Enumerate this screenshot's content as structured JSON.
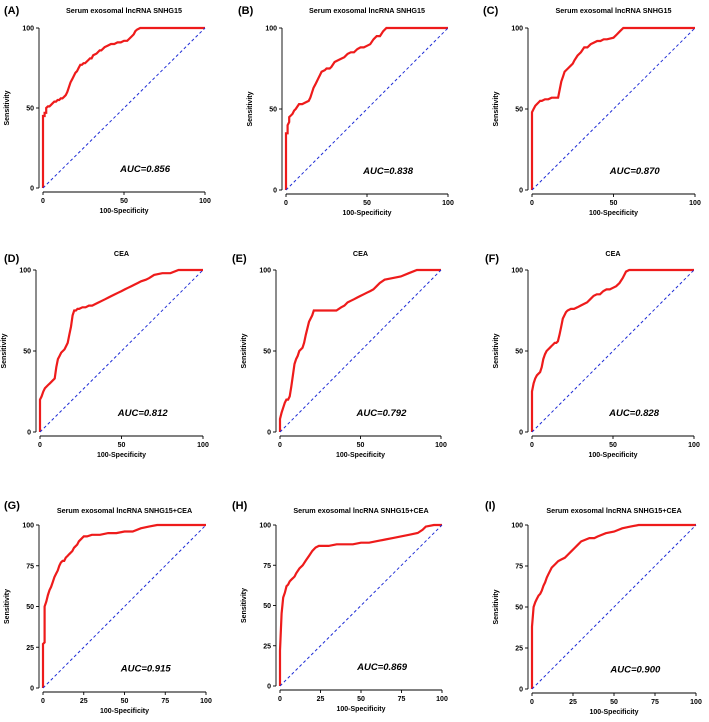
{
  "figure": {
    "style": {
      "roc_color": "#ee1b1b",
      "reference_color": "#1f2dd6",
      "axis_color": "#000000"
    }
  },
  "chart_data": [
    {
      "panel": "(A)",
      "title": "Serum exosomal lncRNA SNHG15",
      "type": "line",
      "xlabel": "100-Specificity",
      "ylabel": "Sensitivity",
      "xlim": [
        0,
        100
      ],
      "ylim": [
        0,
        100
      ],
      "xticks": [
        "0",
        "50",
        "100"
      ],
      "yticks": [
        "0",
        "50",
        "100"
      ],
      "auc_text": "AUC=0.856",
      "series": [
        {
          "name": "ROC",
          "x": [
            0,
            0,
            1,
            1,
            2,
            2,
            3,
            4,
            5,
            6,
            7,
            8,
            9,
            10,
            11,
            12,
            13,
            14,
            15,
            16,
            17,
            18,
            19,
            20,
            21,
            22,
            23,
            24,
            25,
            26,
            28,
            29,
            30,
            31,
            33,
            35,
            36,
            38,
            40,
            42,
            44,
            46,
            48,
            50,
            52,
            55,
            56,
            57,
            58,
            60,
            100
          ],
          "y": [
            0,
            45,
            45,
            47,
            47,
            50,
            51,
            51,
            52,
            53,
            54,
            54,
            55,
            55,
            56,
            56,
            57,
            58,
            60,
            63,
            66,
            68,
            70,
            72,
            73,
            75,
            77,
            77,
            78,
            78,
            80,
            81,
            81,
            83,
            84,
            86,
            86,
            88,
            89,
            90,
            90,
            91,
            91,
            92,
            92,
            95,
            96,
            98,
            99,
            100,
            100
          ]
        },
        {
          "name": "Reference",
          "x": [
            0,
            100
          ],
          "y": [
            0,
            100
          ]
        }
      ]
    },
    {
      "panel": "(B)",
      "title": "Serum exosomal lncRNA SNHG15",
      "type": "line",
      "xlabel": "100-Specificity",
      "ylabel": "Sensitivity",
      "xlim": [
        0,
        100
      ],
      "ylim": [
        0,
        100
      ],
      "xticks": [
        "0",
        "50",
        "100"
      ],
      "yticks": [
        "0",
        "50",
        "100"
      ],
      "auc_text": "AUC=0.838",
      "series": [
        {
          "name": "ROC",
          "x": [
            0,
            0,
            1,
            1,
            2,
            2,
            3,
            4,
            5,
            6,
            8,
            10,
            12,
            14,
            15,
            16,
            17,
            18,
            19,
            20,
            21,
            22,
            24,
            25,
            27,
            28,
            30,
            32,
            34,
            36,
            38,
            40,
            42,
            44,
            46,
            48,
            50,
            52,
            54,
            56,
            58,
            60,
            62,
            100
          ],
          "y": [
            0,
            35,
            35,
            40,
            42,
            45,
            46,
            47,
            49,
            50,
            53,
            53,
            54,
            55,
            57,
            60,
            63,
            65,
            67,
            69,
            71,
            73,
            74,
            75,
            75,
            76,
            79,
            80,
            81,
            82,
            84,
            85,
            85,
            87,
            88,
            88,
            89,
            90,
            93,
            95,
            95,
            98,
            100,
            100
          ]
        },
        {
          "name": "Reference",
          "x": [
            0,
            100
          ],
          "y": [
            0,
            100
          ]
        }
      ]
    },
    {
      "panel": "(C)",
      "title": "Serum exosomal lncRNA SNHG15",
      "type": "line",
      "xlabel": "100-Specificity",
      "ylabel": "Sensitivity",
      "xlim": [
        0,
        100
      ],
      "ylim": [
        0,
        100
      ],
      "xticks": [
        "0",
        "50",
        "100"
      ],
      "yticks": [
        "0",
        "50",
        "100"
      ],
      "auc_text": "AUC=0.870",
      "series": [
        {
          "name": "ROC",
          "x": [
            0,
            0,
            1,
            2,
            3,
            4,
            5,
            6,
            8,
            10,
            12,
            14,
            16,
            17,
            18,
            19,
            20,
            22,
            24,
            25,
            26,
            28,
            30,
            32,
            34,
            36,
            38,
            40,
            42,
            44,
            46,
            50,
            52,
            54,
            56,
            58,
            60,
            100
          ],
          "y": [
            0,
            48,
            50,
            52,
            53,
            54,
            55,
            55,
            56,
            56,
            57,
            57,
            57,
            62,
            67,
            70,
            73,
            75,
            77,
            78,
            80,
            83,
            85,
            88,
            88,
            90,
            91,
            92,
            92,
            93,
            93,
            94,
            96,
            98,
            100,
            100,
            100,
            100
          ]
        },
        {
          "name": "Reference",
          "x": [
            0,
            100
          ],
          "y": [
            0,
            100
          ]
        }
      ]
    },
    {
      "panel": "(D)",
      "title": "CEA",
      "type": "line",
      "xlabel": "100-Specificity",
      "ylabel": "Sensitivity",
      "xlim": [
        0,
        100
      ],
      "ylim": [
        0,
        100
      ],
      "xticks": [
        "0",
        "50",
        "100"
      ],
      "yticks": [
        "0",
        "50",
        "100"
      ],
      "auc_text": "AUC=0.812",
      "series": [
        {
          "name": "ROC",
          "x": [
            0,
            0,
            1,
            2,
            3,
            4,
            5,
            6,
            7,
            8,
            9,
            10,
            11,
            12,
            13,
            15,
            16,
            17,
            18,
            19,
            20,
            21,
            22,
            23,
            24,
            26,
            28,
            30,
            32,
            34,
            36,
            38,
            40,
            42,
            44,
            46,
            48,
            50,
            52,
            54,
            56,
            58,
            60,
            62,
            65,
            67,
            70,
            75,
            80,
            85,
            90,
            100
          ],
          "y": [
            0,
            20,
            22,
            25,
            27,
            28,
            29,
            30,
            31,
            32,
            33,
            40,
            45,
            47,
            49,
            51,
            53,
            55,
            60,
            65,
            72,
            75,
            75,
            76,
            76,
            77,
            77,
            78,
            78,
            79,
            80,
            81,
            82,
            83,
            84,
            85,
            86,
            87,
            88,
            89,
            90,
            91,
            92,
            93,
            94,
            95,
            97,
            98,
            98,
            100,
            100,
            100
          ]
        },
        {
          "name": "Reference",
          "x": [
            0,
            100
          ],
          "y": [
            0,
            100
          ]
        }
      ]
    },
    {
      "panel": "(E)",
      "title": "CEA",
      "type": "line",
      "xlabel": "100-Specificity",
      "ylabel": "Sensitivity",
      "xlim": [
        0,
        100
      ],
      "ylim": [
        0,
        100
      ],
      "xticks": [
        "0",
        "50",
        "100"
      ],
      "yticks": [
        "0",
        "50",
        "100"
      ],
      "auc_text": "AUC=0.792",
      "series": [
        {
          "name": "ROC",
          "x": [
            0,
            0,
            1,
            2,
            3,
            4,
            5,
            6,
            7,
            8,
            9,
            10,
            11,
            12,
            14,
            15,
            16,
            18,
            20,
            21,
            25,
            30,
            35,
            38,
            40,
            42,
            44,
            46,
            48,
            50,
            52,
            54,
            56,
            58,
            60,
            62,
            65,
            70,
            75,
            80,
            85,
            90,
            100
          ],
          "y": [
            0,
            8,
            12,
            15,
            18,
            20,
            20,
            22,
            28,
            35,
            42,
            45,
            47,
            50,
            52,
            55,
            60,
            68,
            72,
            75,
            75,
            75,
            75,
            77,
            78,
            80,
            81,
            82,
            83,
            84,
            85,
            86,
            87,
            88,
            90,
            92,
            94,
            95,
            96,
            98,
            100,
            100,
            100
          ]
        },
        {
          "name": "Reference",
          "x": [
            0,
            100
          ],
          "y": [
            0,
            100
          ]
        }
      ]
    },
    {
      "panel": "(F)",
      "title": "CEA",
      "type": "line",
      "xlabel": "100-Specificity",
      "ylabel": "Sensitivity",
      "xlim": [
        0,
        100
      ],
      "ylim": [
        0,
        100
      ],
      "xticks": [
        "0",
        "50",
        "100"
      ],
      "yticks": [
        "0",
        "50",
        "100"
      ],
      "auc_text": "AUC=0.828",
      "series": [
        {
          "name": "ROC",
          "x": [
            0,
            0,
            1,
            2,
            3,
            4,
            5,
            6,
            7,
            8,
            9,
            10,
            11,
            12,
            13,
            14,
            15,
            16,
            17,
            18,
            19,
            20,
            21,
            22,
            24,
            26,
            28,
            30,
            32,
            34,
            36,
            38,
            40,
            42,
            44,
            46,
            48,
            50,
            52,
            54,
            56,
            58,
            60,
            100
          ],
          "y": [
            0,
            25,
            30,
            33,
            35,
            36,
            37,
            40,
            45,
            48,
            50,
            51,
            52,
            53,
            54,
            55,
            55,
            56,
            60,
            65,
            70,
            72,
            74,
            75,
            76,
            76,
            77,
            78,
            79,
            80,
            82,
            84,
            85,
            85,
            87,
            88,
            88,
            89,
            90,
            92,
            95,
            99,
            100,
            100
          ]
        },
        {
          "name": "Reference",
          "x": [
            0,
            100
          ],
          "y": [
            0,
            100
          ]
        }
      ]
    },
    {
      "panel": "(G)",
      "title": "Serum exosomal lncRNA SNHG15+CEA",
      "type": "line",
      "xlabel": "100-Specificity",
      "ylabel": "Sensitivity",
      "xlim": [
        0,
        100
      ],
      "ylim": [
        0,
        100
      ],
      "xticks": [
        "0",
        "25",
        "50",
        "75",
        "100"
      ],
      "yticks": [
        "0",
        "25",
        "50",
        "75",
        "100"
      ],
      "auc_text": "AUC=0.915",
      "series": [
        {
          "name": "ROC",
          "x": [
            0,
            0,
            1,
            1,
            2,
            3,
            4,
            5,
            6,
            7,
            8,
            9,
            10,
            11,
            12,
            13,
            14,
            15,
            16,
            17,
            18,
            19,
            20,
            21,
            22,
            23,
            25,
            27,
            30,
            35,
            40,
            45,
            50,
            55,
            60,
            65,
            70,
            75,
            80,
            100
          ],
          "y": [
            0,
            27,
            28,
            50,
            53,
            57,
            60,
            62,
            65,
            68,
            70,
            72,
            75,
            77,
            78,
            78,
            80,
            81,
            82,
            83,
            84,
            86,
            87,
            88,
            90,
            91,
            93,
            93,
            94,
            94,
            95,
            95,
            96,
            96,
            98,
            99,
            100,
            100,
            100,
            100
          ]
        },
        {
          "name": "Reference",
          "x": [
            0,
            100
          ],
          "y": [
            0,
            100
          ]
        }
      ]
    },
    {
      "panel": "(H)",
      "title": "Serum exosomal lncRNA SNHG15+CEA",
      "type": "line",
      "xlabel": "100-Specificity",
      "ylabel": "Sensitivity",
      "xlim": [
        0,
        100
      ],
      "ylim": [
        0,
        100
      ],
      "xticks": [
        "0",
        "25",
        "50",
        "75",
        "100"
      ],
      "yticks": [
        "0",
        "25",
        "50",
        "75",
        "100"
      ],
      "auc_text": "AUC=0.869",
      "series": [
        {
          "name": "ROC",
          "x": [
            0,
            0,
            1,
            2,
            3,
            4,
            5,
            6,
            7,
            8,
            9,
            10,
            12,
            14,
            16,
            18,
            20,
            22,
            24,
            26,
            30,
            35,
            40,
            45,
            50,
            55,
            60,
            65,
            70,
            75,
            80,
            85,
            88,
            90,
            95,
            100
          ],
          "y": [
            0,
            22,
            45,
            55,
            58,
            62,
            63,
            65,
            66,
            67,
            68,
            70,
            73,
            75,
            78,
            81,
            84,
            86,
            87,
            87,
            87,
            88,
            88,
            88,
            89,
            89,
            90,
            91,
            92,
            93,
            94,
            95,
            97,
            99,
            100,
            100
          ]
        },
        {
          "name": "Reference",
          "x": [
            0,
            100
          ],
          "y": [
            0,
            100
          ]
        }
      ]
    },
    {
      "panel": "(I)",
      "title": "Serum exosomal lncRNA SNHG15+CEA",
      "type": "line",
      "xlabel": "100-Specificity",
      "ylabel": "Sensitivity",
      "xlim": [
        0,
        100
      ],
      "ylim": [
        0,
        100
      ],
      "xticks": [
        "0",
        "25",
        "50",
        "75",
        "100"
      ],
      "yticks": [
        "0",
        "25",
        "50",
        "75",
        "100"
      ],
      "auc_text": "AUC=0.900",
      "series": [
        {
          "name": "ROC",
          "x": [
            0,
            0,
            1,
            2,
            3,
            4,
            5,
            6,
            7,
            8,
            9,
            10,
            12,
            14,
            16,
            18,
            20,
            22,
            24,
            26,
            28,
            30,
            35,
            38,
            40,
            45,
            50,
            55,
            60,
            65,
            70,
            75,
            80,
            100
          ],
          "y": [
            0,
            38,
            50,
            53,
            55,
            57,
            58,
            60,
            63,
            65,
            68,
            70,
            74,
            76,
            78,
            79,
            80,
            82,
            84,
            86,
            88,
            90,
            92,
            92,
            93,
            95,
            96,
            98,
            99,
            100,
            100,
            100,
            100,
            100
          ]
        },
        {
          "name": "Reference",
          "x": [
            0,
            100
          ],
          "y": [
            0,
            100
          ]
        }
      ]
    }
  ]
}
